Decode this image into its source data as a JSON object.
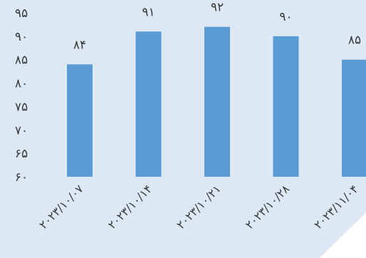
{
  "chart_data": {
    "type": "bar",
    "title": "",
    "xlabel": "",
    "ylabel": "",
    "categories": [
      "۲۰۲۳/۱۰/۰۷",
      "۲۰۲۳/۱۰/۱۴",
      "۲۰۲۳/۱۰/۲۱",
      "۲۰۲۳/۱۰/۲۸",
      "۲۰۲۳/۱۱/۰۴"
    ],
    "values": [
      84,
      91,
      92,
      90,
      85
    ],
    "value_labels": [
      "۸۴",
      "۹۱",
      "۹۲",
      "۹۰",
      "۸۵"
    ],
    "ylim": [
      60,
      95
    ],
    "yticks": [
      60,
      65,
      70,
      75,
      80,
      85,
      90,
      95
    ],
    "ytick_labels": [
      "۶۰",
      "۶۵",
      "۷۰",
      "۷۵",
      "۸۰",
      "۸۵",
      "۹۰",
      "۹۵"
    ],
    "grid": false,
    "legend": "none",
    "bar_color": "#5b9bd5",
    "background_color": "#dde8f5"
  }
}
